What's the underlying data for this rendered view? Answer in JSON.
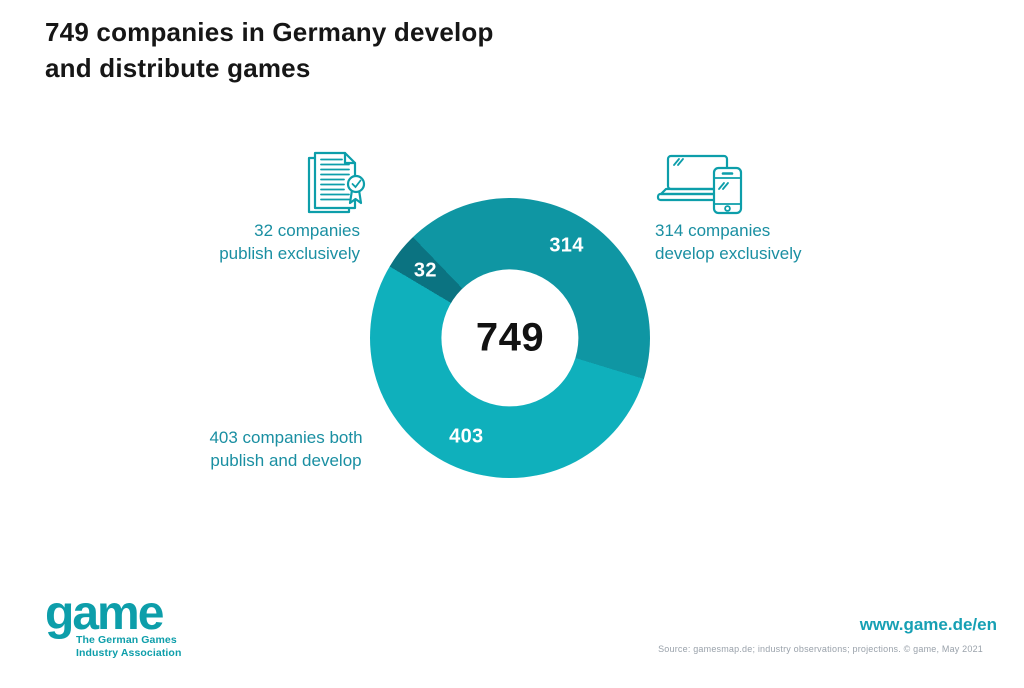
{
  "header": {
    "title_line1": "749 companies in Germany develop",
    "title_line2": "and distribute games"
  },
  "colors": {
    "title_text": "#161616",
    "callout_text": "#1a8fa2",
    "icon_teal": "#0d9eaa",
    "url_text": "#17a0b4",
    "source_text": "#9aa2ab",
    "segment_develop": "#0f96a3",
    "segment_both": "#0fb0bc",
    "segment_publish": "#0b7381"
  },
  "chart_data": {
    "type": "donut",
    "title": "749 companies in Germany develop and distribute games",
    "total": 749,
    "center_label": "749",
    "start_angle_deg": -43.9,
    "inner_radius_ratio": 0.49,
    "legend_position": "around-chart",
    "segments": [
      {
        "name": "develop exclusively",
        "value": 314,
        "color": "#0f96a3"
      },
      {
        "name": "both publish and develop",
        "value": 403,
        "color": "#0fb0bc"
      },
      {
        "name": "publish exclusively",
        "value": 32,
        "color": "#0b7381"
      }
    ]
  },
  "callouts": {
    "publish": {
      "line1": "32 companies",
      "line2": "publish exclusively"
    },
    "develop": {
      "line1": "314 companies",
      "line2": "develop exclusively"
    },
    "both": {
      "line1": "403 companies both",
      "line2": "publish and develop"
    }
  },
  "footer": {
    "logo_text": "game",
    "logo_tagline_line1": "The German Games",
    "logo_tagline_line2": "Industry Association",
    "url": "www.game.de/en",
    "source": "Source: gamesmap.de; industry observations; projections. © game, May 2021"
  }
}
